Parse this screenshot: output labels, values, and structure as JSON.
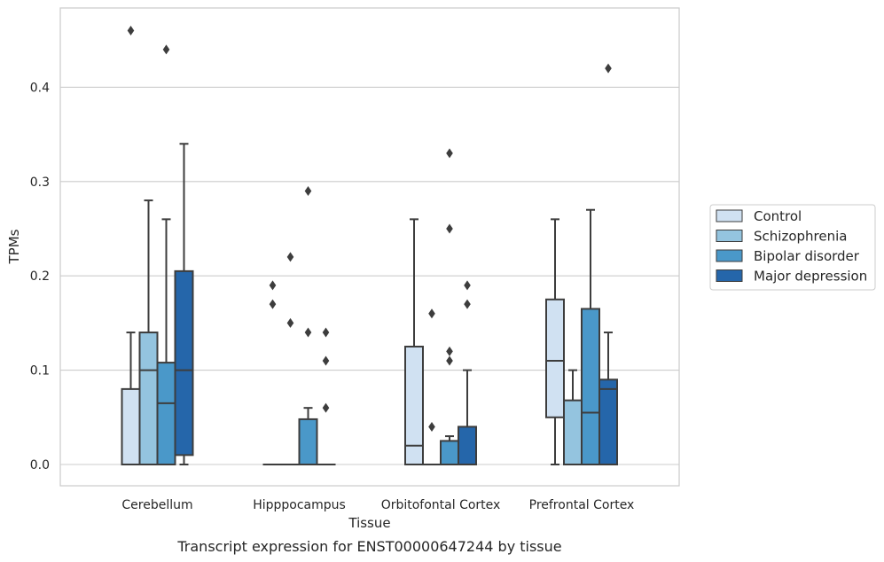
{
  "chart_data": {
    "type": "box",
    "caption": "Transcript expression for ENST00000647244 by tissue",
    "xlabel": "Tissue",
    "ylabel": "TPMs",
    "ylim": [
      -0.022,
      0.484
    ],
    "yticks": [
      "0.0",
      "0.1",
      "0.2",
      "0.3",
      "0.4"
    ],
    "ytick_values": [
      0.0,
      0.1,
      0.2,
      0.3,
      0.4
    ],
    "grid": true,
    "legend_position": "right",
    "categories": [
      "Cerebellum",
      "Hipppocampus",
      "Orbitofontal Cortex",
      "Prefrontal Cortex"
    ],
    "series": [
      {
        "name": "Control",
        "color": "#d0e1f2",
        "boxes": [
          {
            "whislo": 0.0,
            "q1": 0.0,
            "med": 0.0,
            "q3": 0.08,
            "whishi": 0.14,
            "fliers": [
              0.46
            ]
          },
          {
            "whislo": 0.0,
            "q1": 0.0,
            "med": 0.0,
            "q3": 0.0,
            "whishi": 0.0,
            "fliers": [
              0.19,
              0.17
            ]
          },
          {
            "whislo": 0.0,
            "q1": 0.0,
            "med": 0.02,
            "q3": 0.125,
            "whishi": 0.26,
            "fliers": []
          },
          {
            "whislo": 0.0,
            "q1": 0.05,
            "med": 0.11,
            "q3": 0.175,
            "whishi": 0.26,
            "fliers": []
          }
        ]
      },
      {
        "name": "Schizophrenia",
        "color": "#94c4df",
        "boxes": [
          {
            "whislo": 0.0,
            "q1": 0.0,
            "med": 0.1,
            "q3": 0.14,
            "whishi": 0.28,
            "fliers": []
          },
          {
            "whislo": 0.0,
            "q1": 0.0,
            "med": 0.0,
            "q3": 0.0,
            "whishi": 0.0,
            "fliers": [
              0.22,
              0.15
            ]
          },
          {
            "whislo": 0.0,
            "q1": 0.0,
            "med": 0.0,
            "q3": 0.0,
            "whishi": 0.0,
            "fliers": [
              0.16,
              0.04
            ]
          },
          {
            "whislo": 0.0,
            "q1": 0.0,
            "med": 0.0,
            "q3": 0.068,
            "whishi": 0.1,
            "fliers": []
          }
        ]
      },
      {
        "name": "Bipolar disorder",
        "color": "#4a98c9",
        "boxes": [
          {
            "whislo": 0.0,
            "q1": 0.0,
            "med": 0.065,
            "q3": 0.108,
            "whishi": 0.26,
            "fliers": [
              0.44
            ]
          },
          {
            "whislo": 0.0,
            "q1": 0.0,
            "med": 0.0,
            "q3": 0.048,
            "whishi": 0.06,
            "fliers": [
              0.29,
              0.14
            ]
          },
          {
            "whislo": 0.0,
            "q1": 0.0,
            "med": 0.0,
            "q3": 0.025,
            "whishi": 0.03,
            "fliers": [
              0.33,
              0.25,
              0.12,
              0.11
            ]
          },
          {
            "whislo": 0.0,
            "q1": 0.0,
            "med": 0.055,
            "q3": 0.165,
            "whishi": 0.27,
            "fliers": []
          }
        ]
      },
      {
        "name": "Major depression",
        "color": "#2566aa",
        "boxes": [
          {
            "whislo": 0.0,
            "q1": 0.01,
            "med": 0.1,
            "q3": 0.205,
            "whishi": 0.34,
            "fliers": []
          },
          {
            "whislo": 0.0,
            "q1": 0.0,
            "med": 0.0,
            "q3": 0.0,
            "whishi": 0.0,
            "fliers": [
              0.14,
              0.11,
              0.06
            ]
          },
          {
            "whislo": 0.0,
            "q1": 0.0,
            "med": 0.0,
            "q3": 0.04,
            "whishi": 0.1,
            "fliers": [
              0.19,
              0.17
            ]
          },
          {
            "whislo": 0.0,
            "q1": 0.0,
            "med": 0.08,
            "q3": 0.09,
            "whishi": 0.14,
            "fliers": [
              0.42
            ]
          }
        ]
      }
    ]
  }
}
